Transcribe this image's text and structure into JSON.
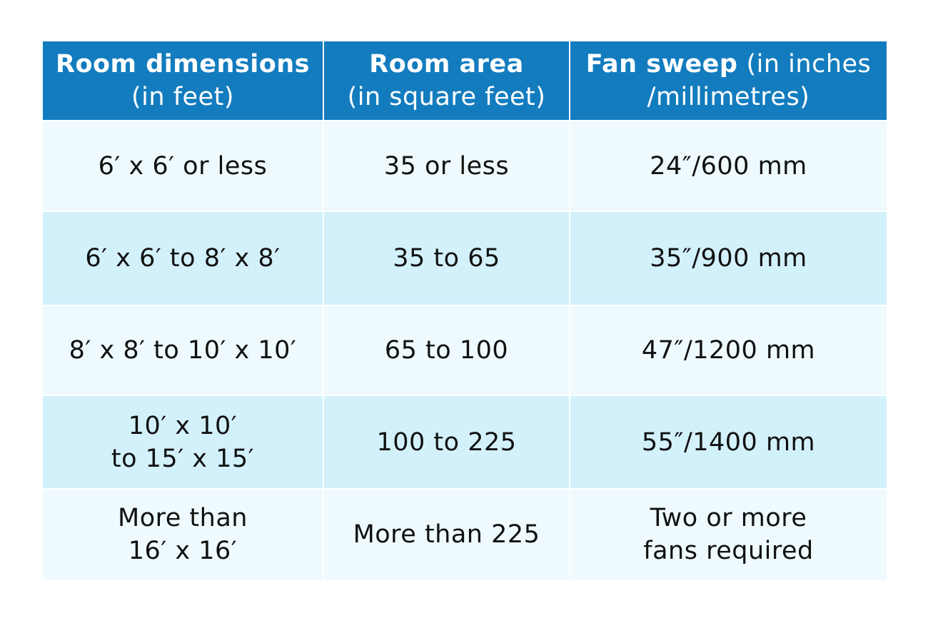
{
  "table": {
    "header": [
      [
        [
          {
            "text": "Room dimensions",
            "bold": true
          }
        ],
        [
          {
            "text": "(in feet)",
            "bold": false
          }
        ]
      ],
      [
        [
          {
            "text": "Room area",
            "bold": true
          }
        ],
        [
          {
            "text": "(in square feet)",
            "bold": false
          }
        ]
      ],
      [
        [
          {
            "text": "Fan sweep",
            "bold": true
          },
          {
            "text": "(in inches",
            "bold": false
          }
        ],
        [
          {
            "text": "/millimetres)",
            "bold": false
          }
        ]
      ]
    ],
    "rows": [
      [
        [
          "6′ x 6′ or less"
        ],
        [
          "35 or less"
        ],
        [
          "24″/600 mm"
        ]
      ],
      [
        [
          "6′ x 6′ to 8′ x 8′"
        ],
        [
          "35 to 65"
        ],
        [
          "35″/900 mm"
        ]
      ],
      [
        [
          "8′ x 8′ to 10′ x 10′"
        ],
        [
          "65 to 100"
        ],
        [
          "47″/1200 mm"
        ]
      ],
      [
        [
          "10′ x 10′",
          "to 15′ x 15′"
        ],
        [
          "100 to 225"
        ],
        [
          "55″/1400 mm"
        ]
      ],
      [
        [
          "More than",
          "16′ x 16′"
        ],
        [
          "More than 225"
        ],
        [
          "Two or more",
          "fans required"
        ]
      ]
    ]
  }
}
